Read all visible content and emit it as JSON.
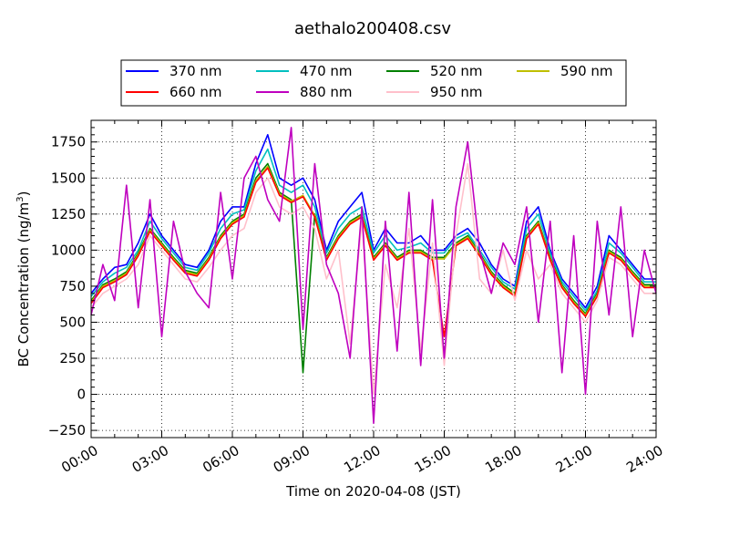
{
  "chart_data": {
    "type": "line",
    "title": "aethalo200408.csv",
    "xlabel": "Time on 2020-04-08 (JST)",
    "ylabel_main": "BC Concentration (ng/m",
    "ylabel_sup": "3",
    "ylabel_tail": ")",
    "xlim": [
      "00:00",
      "24:00"
    ],
    "ylim": [
      -300,
      1900
    ],
    "x_ticks": [
      "00:00",
      "03:00",
      "06:00",
      "09:00",
      "12:00",
      "15:00",
      "18:00",
      "21:00",
      "24:00"
    ],
    "y_ticks": [
      -250,
      0,
      250,
      500,
      750,
      1000,
      1250,
      1500,
      1750
    ],
    "grid": true,
    "legend_position": "top",
    "legend_columns": 4,
    "x_hours": [
      0.0,
      0.5,
      1.0,
      1.5,
      2.0,
      2.5,
      3.0,
      3.5,
      4.0,
      4.5,
      5.0,
      5.5,
      6.0,
      6.5,
      7.0,
      7.5,
      8.0,
      8.5,
      9.0,
      9.5,
      10.0,
      10.5,
      11.0,
      11.5,
      12.0,
      12.5,
      13.0,
      13.5,
      14.0,
      14.5,
      15.0,
      15.5,
      16.0,
      16.5,
      17.0,
      17.5,
      18.0,
      18.5,
      19.0,
      19.5,
      20.0,
      20.5,
      21.0,
      21.5,
      22.0,
      22.5,
      23.0,
      23.5,
      24.0
    ],
    "series": [
      {
        "name": "370 nm",
        "color": "#0000ff",
        "values": [
          700,
          800,
          880,
          900,
          1050,
          1250,
          1100,
          1000,
          900,
          880,
          1000,
          1200,
          1300,
          1300,
          1600,
          1800,
          1500,
          1450,
          1500,
          1350,
          1000,
          1200,
          1300,
          1400,
          1000,
          1150,
          1050,
          1050,
          1100,
          1000,
          1000,
          1100,
          1150,
          1050,
          900,
          800,
          750,
          1200,
          1300,
          1000,
          800,
          700,
          600,
          750,
          1100,
          1000,
          900,
          800,
          800
        ]
      },
      {
        "name": "470 nm",
        "color": "#00bfbf",
        "values": [
          680,
          780,
          840,
          880,
          1000,
          1200,
          1080,
          980,
          880,
          860,
          980,
          1150,
          1250,
          1280,
          1550,
          1700,
          1450,
          1400,
          1450,
          1300,
          980,
          1150,
          1250,
          1300,
          980,
          1100,
          1000,
          1020,
          1050,
          980,
          980,
          1080,
          1120,
          1000,
          880,
          780,
          730,
          1150,
          1250,
          980,
          780,
          680,
          580,
          720,
          1050,
          980,
          880,
          780,
          780
        ]
      },
      {
        "name": "520 nm",
        "color": "#008000",
        "values": [
          650,
          760,
          800,
          850,
          980,
          1150,
          1050,
          950,
          860,
          840,
          950,
          1100,
          1200,
          1250,
          1500,
          1600,
          1400,
          1350,
          150,
          1250,
          950,
          1100,
          1200,
          1250,
          950,
          1050,
          950,
          1000,
          1000,
          950,
          950,
          1050,
          1100,
          980,
          850,
          760,
          700,
          1100,
          1200,
          950,
          760,
          650,
          560,
          700,
          1000,
          950,
          850,
          760,
          760
        ]
      },
      {
        "name": "590 nm",
        "color": "#bfbf00",
        "values": [
          640,
          750,
          790,
          840,
          970,
          1140,
          1040,
          940,
          850,
          830,
          940,
          1090,
          1190,
          1240,
          1480,
          1580,
          1390,
          1340,
          1380,
          1240,
          940,
          1090,
          1190,
          1240,
          940,
          1040,
          940,
          990,
          990,
          940,
          940,
          1040,
          1090,
          970,
          840,
          750,
          690,
          1090,
          1190,
          940,
          750,
          640,
          550,
          690,
          990,
          940,
          840,
          750,
          750
        ]
      },
      {
        "name": "660 nm",
        "color": "#ff0000",
        "values": [
          630,
          740,
          780,
          830,
          960,
          1130,
          1030,
          930,
          840,
          820,
          930,
          1080,
          1180,
          1230,
          1470,
          1570,
          1380,
          1330,
          1370,
          1230,
          930,
          1080,
          1180,
          1230,
          930,
          1030,
          930,
          980,
          980,
          930,
          400,
          1030,
          1080,
          960,
          830,
          740,
          680,
          1080,
          1180,
          930,
          740,
          630,
          540,
          680,
          980,
          930,
          830,
          740,
          740
        ]
      },
      {
        "name": "880 nm",
        "color": "#bf00bf",
        "values": [
          550,
          900,
          650,
          1450,
          600,
          1350,
          400,
          1200,
          850,
          700,
          600,
          1400,
          800,
          1500,
          1650,
          1350,
          1200,
          1850,
          450,
          1600,
          900,
          700,
          250,
          1300,
          -200,
          1200,
          300,
          1400,
          200,
          1350,
          250,
          1300,
          1750,
          1000,
          700,
          1050,
          900,
          1300,
          500,
          1200,
          150,
          1100,
          0,
          1200,
          550,
          1300,
          400,
          1000,
          700
        ]
      },
      {
        "name": "950 nm",
        "color": "#ffc0cb",
        "values": [
          600,
          700,
          750,
          800,
          900,
          1100,
          1000,
          900,
          800,
          780,
          880,
          1000,
          1100,
          1150,
          1400,
          1500,
          1300,
          1250,
          1300,
          1150,
          800,
          1000,
          350,
          1200,
          0,
          900,
          600,
          1150,
          300,
          1050,
          200,
          1100,
          1600,
          800,
          700,
          1000,
          650,
          1000,
          800,
          900,
          700,
          600,
          500,
          650,
          950,
          900,
          800,
          700,
          700
        ]
      }
    ]
  }
}
